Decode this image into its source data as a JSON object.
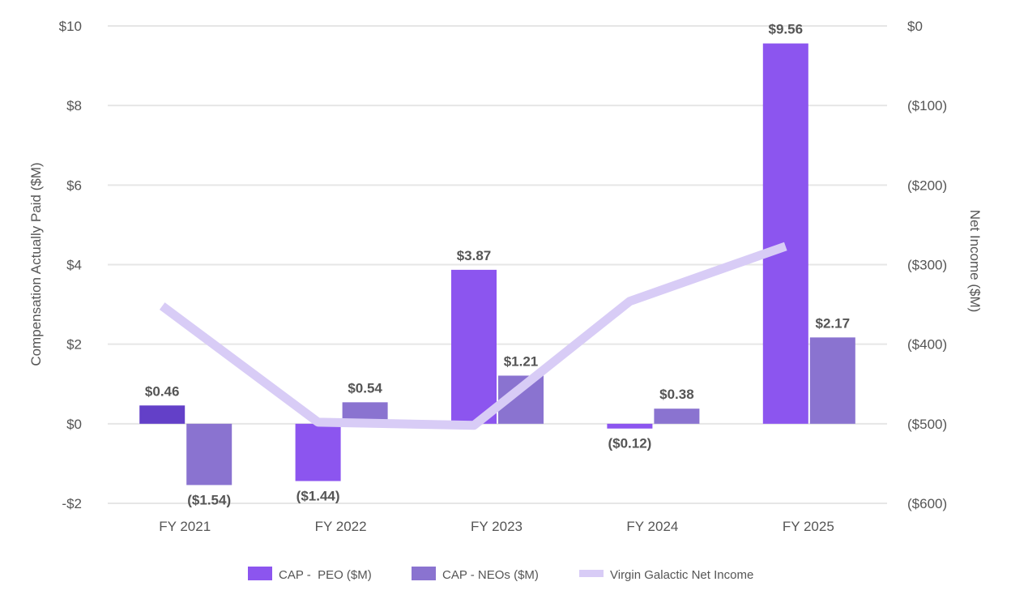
{
  "chart_data": {
    "type": "bar",
    "categories": [
      "FY 2021",
      "FY 2022",
      "FY 2023",
      "FY 2024",
      "FY 2025"
    ],
    "series": [
      {
        "name": "CAP -  PEO ($M)",
        "type": "bar",
        "axis": "left",
        "values": [
          0.46,
          -1.44,
          3.87,
          -0.12,
          9.56
        ],
        "labels": [
          "$0.46",
          "($1.44)",
          "$3.87",
          "($0.12)",
          "$9.56"
        ],
        "color": "#8c55ef",
        "point_colors": [
          "#6340c8",
          "#8c55ef",
          "#8c55ef",
          "#8c55ef",
          "#8c55ef"
        ]
      },
      {
        "name": "CAP - NEOs ($M)",
        "type": "bar",
        "axis": "right_bar",
        "values": [
          -1.54,
          0.54,
          1.21,
          0.38,
          2.17
        ],
        "labels": [
          "($1.54)",
          "$0.54",
          "$1.21",
          "$0.38",
          "$2.17"
        ],
        "color": "#8a73d0"
      },
      {
        "name": "Virgin Galactic Net Income",
        "type": "line",
        "axis": "right",
        "values": [
          -352,
          -498,
          -502,
          -346,
          -277
        ],
        "color": "#d8ccf6"
      }
    ],
    "ylabel": "Compensation Actually Paid ($M)",
    "y2label": "Net Income ($M)",
    "ylim": [
      -2,
      10
    ],
    "y2lim": [
      -600,
      0
    ],
    "yticks": [
      {
        "value": 10,
        "label": "$10"
      },
      {
        "value": 8,
        "label": "$8"
      },
      {
        "value": 6,
        "label": "$6"
      },
      {
        "value": 4,
        "label": "$4"
      },
      {
        "value": 2,
        "label": "$2"
      },
      {
        "value": 0,
        "label": "$0"
      },
      {
        "value": -2,
        "label": "-$2"
      }
    ],
    "y2ticks": [
      {
        "value": 0,
        "label": "$0"
      },
      {
        "value": -100,
        "label": "($100)"
      },
      {
        "value": -200,
        "label": "($200)"
      },
      {
        "value": -300,
        "label": "($300)"
      },
      {
        "value": -400,
        "label": "($400)"
      },
      {
        "value": -500,
        "label": "($500)"
      },
      {
        "value": -600,
        "label": "($600)"
      }
    ],
    "grid": true,
    "legend": "bottom"
  }
}
